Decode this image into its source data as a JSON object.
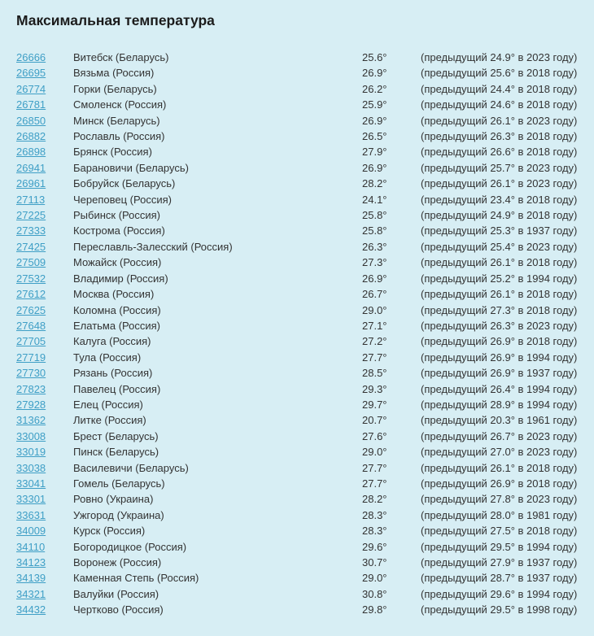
{
  "title": "Максимальная температура",
  "colors": {
    "background": "#d7eef4",
    "link": "#3f9fc6",
    "text": "#333333",
    "title_text": "#1b1b1b"
  },
  "table": {
    "rows": [
      {
        "id": "26666",
        "station": "Витебск (Беларусь)",
        "temp": "25.6°",
        "previous": "(предыдущий 24.9° в 2023 году)"
      },
      {
        "id": "26695",
        "station": "Вязьма (Россия)",
        "temp": "26.9°",
        "previous": "(предыдущий 25.6° в 2018 году)"
      },
      {
        "id": "26774",
        "station": "Горки (Беларусь)",
        "temp": "26.2°",
        "previous": "(предыдущий 24.4° в 2018 году)"
      },
      {
        "id": "26781",
        "station": "Смоленск (Россия)",
        "temp": "25.9°",
        "previous": "(предыдущий 24.6° в 2018 году)"
      },
      {
        "id": "26850",
        "station": "Минск (Беларусь)",
        "temp": "26.9°",
        "previous": "(предыдущий 26.1° в 2023 году)"
      },
      {
        "id": "26882",
        "station": "Рославль (Россия)",
        "temp": "26.5°",
        "previous": "(предыдущий 26.3° в 2018 году)"
      },
      {
        "id": "26898",
        "station": "Брянск (Россия)",
        "temp": "27.9°",
        "previous": "(предыдущий 26.6° в 2018 году)"
      },
      {
        "id": "26941",
        "station": "Барановичи (Беларусь)",
        "temp": "26.9°",
        "previous": "(предыдущий 25.7° в 2023 году)"
      },
      {
        "id": "26961",
        "station": "Бобруйск (Беларусь)",
        "temp": "28.2°",
        "previous": "(предыдущий 26.1° в 2023 году)"
      },
      {
        "id": "27113",
        "station": "Череповец (Россия)",
        "temp": "24.1°",
        "previous": "(предыдущий 23.4° в 2018 году)"
      },
      {
        "id": "27225",
        "station": "Рыбинск (Россия)",
        "temp": "25.8°",
        "previous": "(предыдущий 24.9° в 2018 году)"
      },
      {
        "id": "27333",
        "station": "Кострома (Россия)",
        "temp": "25.8°",
        "previous": "(предыдущий 25.3° в 1937 году)"
      },
      {
        "id": "27425",
        "station": "Переславль-Залесский (Россия)",
        "temp": "26.3°",
        "previous": "(предыдущий 25.4° в 2023 году)"
      },
      {
        "id": "27509",
        "station": "Можайск (Россия)",
        "temp": "27.3°",
        "previous": "(предыдущий 26.1° в 2018 году)"
      },
      {
        "id": "27532",
        "station": "Владимир (Россия)",
        "temp": "26.9°",
        "previous": "(предыдущий 25.2° в 1994 году)"
      },
      {
        "id": "27612",
        "station": "Москва (Россия)",
        "temp": "26.7°",
        "previous": "(предыдущий 26.1° в 2018 году)"
      },
      {
        "id": "27625",
        "station": "Коломна (Россия)",
        "temp": "29.0°",
        "previous": "(предыдущий 27.3° в 2018 году)"
      },
      {
        "id": "27648",
        "station": "Елатьма (Россия)",
        "temp": "27.1°",
        "previous": "(предыдущий 26.3° в 2023 году)"
      },
      {
        "id": "27705",
        "station": "Калуга (Россия)",
        "temp": "27.2°",
        "previous": "(предыдущий 26.9° в 2018 году)"
      },
      {
        "id": "27719",
        "station": "Тула (Россия)",
        "temp": "27.7°",
        "previous": "(предыдущий 26.9° в 1994 году)"
      },
      {
        "id": "27730",
        "station": "Рязань (Россия)",
        "temp": "28.5°",
        "previous": "(предыдущий 26.9° в 1937 году)"
      },
      {
        "id": "27823",
        "station": "Павелец (Россия)",
        "temp": "29.3°",
        "previous": "(предыдущий 26.4° в 1994 году)"
      },
      {
        "id": "27928",
        "station": "Елец (Россия)",
        "temp": "29.7°",
        "previous": "(предыдущий 28.9° в 1994 году)"
      },
      {
        "id": "31362",
        "station": "Литке (Россия)",
        "temp": "20.7°",
        "previous": "(предыдущий 20.3° в 1961 году)"
      },
      {
        "id": "33008",
        "station": "Брест (Беларусь)",
        "temp": "27.6°",
        "previous": "(предыдущий 26.7° в 2023 году)"
      },
      {
        "id": "33019",
        "station": "Пинск (Беларусь)",
        "temp": "29.0°",
        "previous": "(предыдущий 27.0° в 2023 году)"
      },
      {
        "id": "33038",
        "station": "Василевичи (Беларусь)",
        "temp": "27.7°",
        "previous": "(предыдущий 26.1° в 2018 году)"
      },
      {
        "id": "33041",
        "station": "Гомель (Беларусь)",
        "temp": "27.7°",
        "previous": "(предыдущий 26.9° в 2018 году)"
      },
      {
        "id": "33301",
        "station": "Ровно (Украина)",
        "temp": "28.2°",
        "previous": "(предыдущий 27.8° в 2023 году)"
      },
      {
        "id": "33631",
        "station": "Ужгород (Украина)",
        "temp": "28.3°",
        "previous": "(предыдущий 28.0° в 1981 году)"
      },
      {
        "id": "34009",
        "station": "Курск (Россия)",
        "temp": "28.3°",
        "previous": "(предыдущий 27.5° в 2018 году)"
      },
      {
        "id": "34110",
        "station": "Богородицкое (Россия)",
        "temp": "29.6°",
        "previous": "(предыдущий 29.5° в 1994 году)"
      },
      {
        "id": "34123",
        "station": "Воронеж (Россия)",
        "temp": "30.7°",
        "previous": "(предыдущий 27.9° в 1937 году)"
      },
      {
        "id": "34139",
        "station": "Каменная Степь (Россия)",
        "temp": "29.0°",
        "previous": "(предыдущий 28.7° в 1937 году)"
      },
      {
        "id": "34321",
        "station": "Валуйки (Россия)",
        "temp": "30.8°",
        "previous": "(предыдущий 29.6° в 1994 году)"
      },
      {
        "id": "34432",
        "station": "Чертково (Россия)",
        "temp": "29.8°",
        "previous": "(предыдущий 29.5° в 1998 году)"
      }
    ]
  }
}
